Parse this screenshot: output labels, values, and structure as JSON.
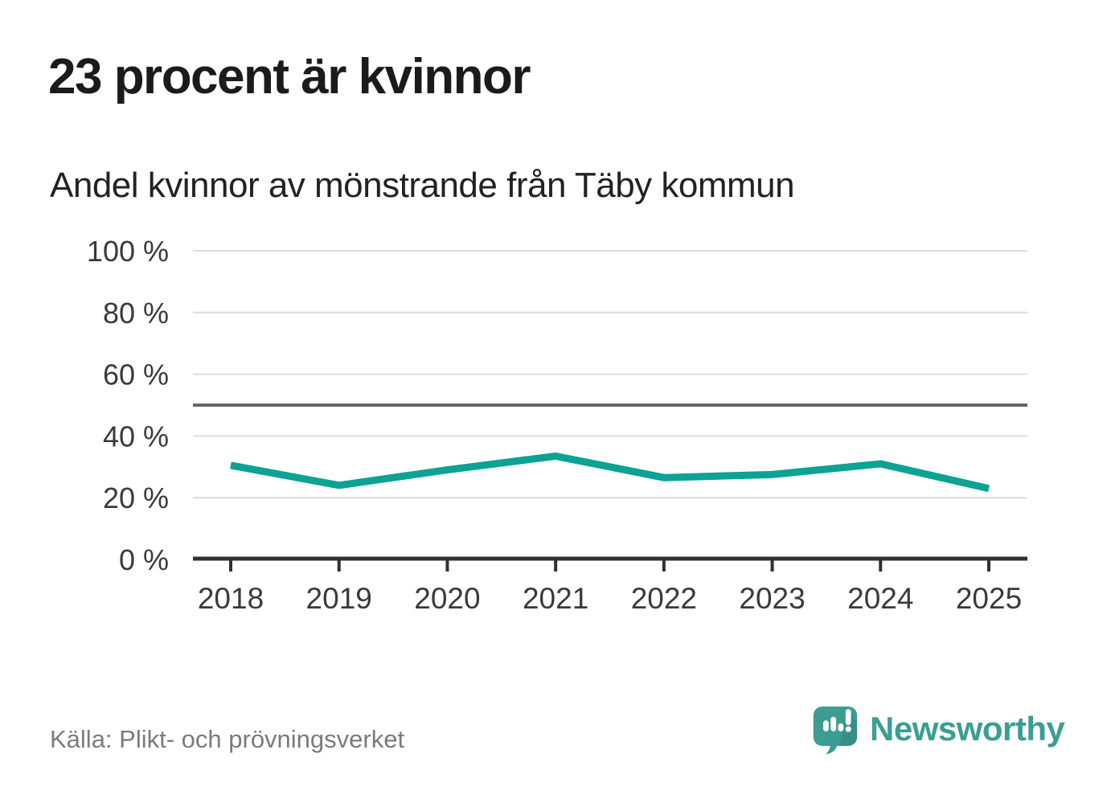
{
  "header": {
    "title": "23 procent är kvinnor",
    "subtitle": "Andel kvinnor av mönstrande från Täby kommun"
  },
  "chart_data": {
    "type": "line",
    "title": "Andel kvinnor av mönstrande från Täby kommun",
    "x": [
      "2018",
      "2019",
      "2020",
      "2021",
      "2022",
      "2023",
      "2024",
      "2025"
    ],
    "series": [
      {
        "name": "Andel kvinnor av mönstrande",
        "values": [
          30.5,
          24,
          29,
          33.5,
          26.5,
          27.5,
          31,
          23
        ]
      }
    ],
    "ylim": [
      0,
      100
    ],
    "yticks": [
      0,
      20,
      40,
      60,
      80,
      100
    ],
    "ytick_suffix": " %",
    "reference_line": 50,
    "grid": true,
    "legend_position": "none"
  },
  "footer": {
    "source": "Källa: Plikt- och prövningsverket",
    "brand_name": "Newsworthy"
  },
  "icons": {
    "logo": "speech-bubble-bar-chart-icon"
  },
  "colors": {
    "line": "#0CA294",
    "brand_teal": "#3B9D93",
    "gridline": "#DCDCDC",
    "reference_line": "#666666",
    "axis": "#303030",
    "title_text": "#1B1B1B",
    "subtitle_text": "#222222",
    "tick_label": "#3A3A3A",
    "source_text": "#7B7B7B"
  }
}
